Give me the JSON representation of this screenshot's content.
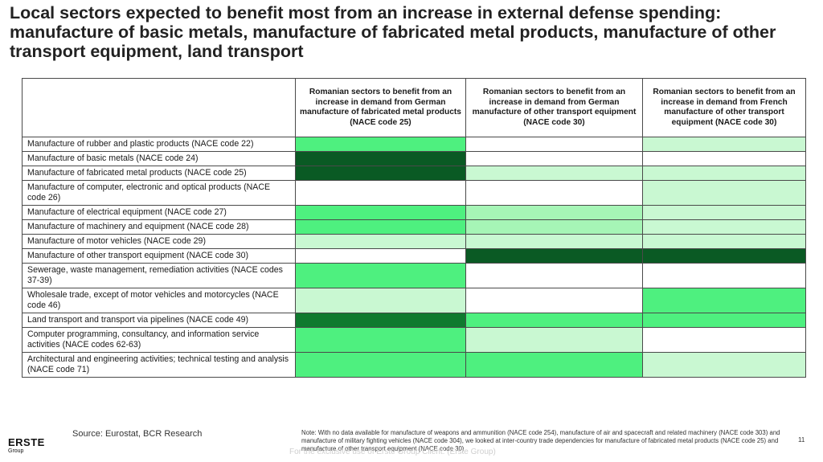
{
  "title": "Local sectors expected to benefit most from an increase in external defense spending: manufacture of basic metals, manufacture of fabricated metal products, manufacture of other transport equipment, land transport",
  "colors": {
    "dark": "#0a5a24",
    "medium_dark": "#0f7a2e",
    "bright": "#4ef07f",
    "light": "#a6f5b6",
    "pale": "#c9f8d2",
    "white": "#ffffff"
  },
  "table": {
    "columns": [
      "",
      "Romanian sectors to benefit from an increase in demand from German manufacture of fabricated metal products (NACE code 25)",
      "Romanian sectors to benefit from an increase in demand from German manufacture of other transport equipment (NACE code 30)",
      "Romanian sectors to benefit from an increase in demand from French manufacture of other transport equipment (NACE code 30)"
    ],
    "rows": [
      {
        "label": "Manufacture of rubber and plastic products (NACE code 22)",
        "levels": [
          "bright",
          "white",
          "pale"
        ]
      },
      {
        "label": "Manufacture of basic metals (NACE code 24)",
        "levels": [
          "dark",
          "white",
          "white"
        ]
      },
      {
        "label": "Manufacture of fabricated metal products (NACE code 25)",
        "levels": [
          "dark",
          "pale",
          "pale"
        ]
      },
      {
        "label": "Manufacture of computer, electronic and optical products (NACE code 26)",
        "levels": [
          "white",
          "white",
          "pale"
        ]
      },
      {
        "label": "Manufacture of electrical equipment (NACE code 27)",
        "levels": [
          "bright",
          "light",
          "pale"
        ]
      },
      {
        "label": "Manufacture of machinery and equipment (NACE code 28)",
        "levels": [
          "bright",
          "light",
          "pale"
        ]
      },
      {
        "label": "Manufacture of motor vehicles (NACE code 29)",
        "levels": [
          "pale",
          "pale",
          "pale"
        ]
      },
      {
        "label": "Manufacture of other transport equipment (NACE code 30)",
        "levels": [
          "white",
          "dark",
          "dark"
        ]
      },
      {
        "label": "Sewerage, waste management, remediation activities (NACE codes 37-39)",
        "levels": [
          "bright",
          "white",
          "white"
        ]
      },
      {
        "label": "Wholesale trade, except of motor vehicles and motorcycles (NACE code 46)",
        "levels": [
          "pale",
          "white",
          "bright"
        ]
      },
      {
        "label": "Land transport and transport via pipelines (NACE code 49)",
        "levels": [
          "medium_dark",
          "bright",
          "bright"
        ]
      },
      {
        "label": "Computer programming, consultancy, and information service activities (NACE codes 62-63)",
        "levels": [
          "bright",
          "pale",
          "white"
        ]
      },
      {
        "label": "Architectural and engineering activities; technical testing and analysis (NACE code 71)",
        "levels": [
          "bright",
          "bright",
          "pale"
        ]
      }
    ]
  },
  "footer": {
    "source": "Source: Eurostat, BCR Research",
    "logo_name": "ERSTE",
    "logo_sub": "Group",
    "note": "Note: With no data available for manufacture of weapons and ammunition (NACE code 254), manufacture of air and spacecraft and related machinery (NACE code 303) and manufacture of military fighting vehicles (NACE code 304), we looked at inter-country trade dependencies for manufacture of fabricated metal products (NACE code 25) and manufacture of other transport equipment (NACE code 30)",
    "watermark": "For the exclusive use of Erste Group Client: (Erste Group)",
    "page_number": "11"
  }
}
